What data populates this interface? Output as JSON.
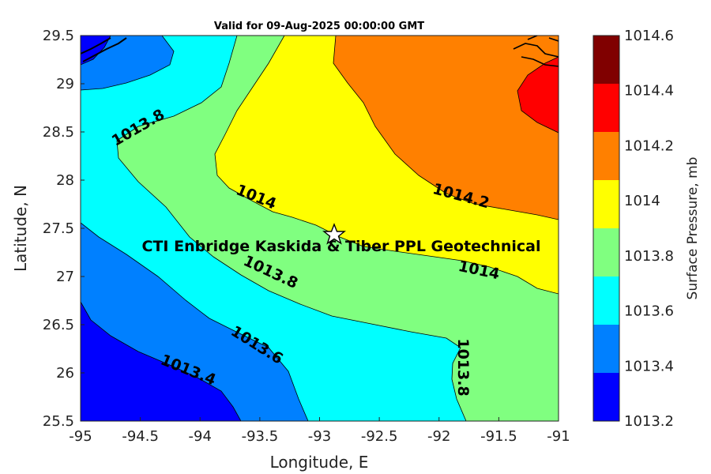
{
  "title": "Valid for 09-Aug-2025 00:00:00 GMT",
  "axes": {
    "xlabel": "Longitude, E",
    "ylabel": "Latitude, N",
    "x_ticks": [
      "-95",
      "-94.5",
      "-94",
      "-93.5",
      "-93",
      "-92.5",
      "-92",
      "-91.5",
      "-91"
    ],
    "y_ticks": [
      "29.5",
      "29",
      "28.5",
      "28",
      "27.5",
      "27",
      "26.5",
      "26",
      "25.5"
    ],
    "xlim": [
      -95,
      -91
    ],
    "ylim": [
      25.5,
      29.5
    ]
  },
  "colorbar": {
    "title": "Surface Pressure, mb",
    "tick_labels": [
      "1014.6",
      "1014.4",
      "1014.2",
      "1014",
      "1013.8",
      "1013.6",
      "1013.4",
      "1013.2"
    ],
    "levels": [
      {
        "color": "#800000"
      },
      {
        "color": "#ff0000"
      },
      {
        "color": "#ff8000"
      },
      {
        "color": "#ffff00"
      },
      {
        "color": "#80ff80"
      },
      {
        "color": "#00ffff"
      },
      {
        "color": "#0080ff"
      },
      {
        "color": "#0000ff"
      }
    ]
  },
  "contour_labels": [
    {
      "text": "1013.8"
    },
    {
      "text": "1014"
    },
    {
      "text": "1014.2"
    },
    {
      "text": "1013.8"
    },
    {
      "text": "1014"
    },
    {
      "text": "1013.6"
    },
    {
      "text": "1013.4"
    },
    {
      "text": "1013.8"
    }
  ],
  "site": {
    "label": "CTI Enbridge  Kaskida & Tiber PPL Geotechnical",
    "lon": -92.88,
    "lat": 27.43,
    "marker": "star-icon"
  }
}
